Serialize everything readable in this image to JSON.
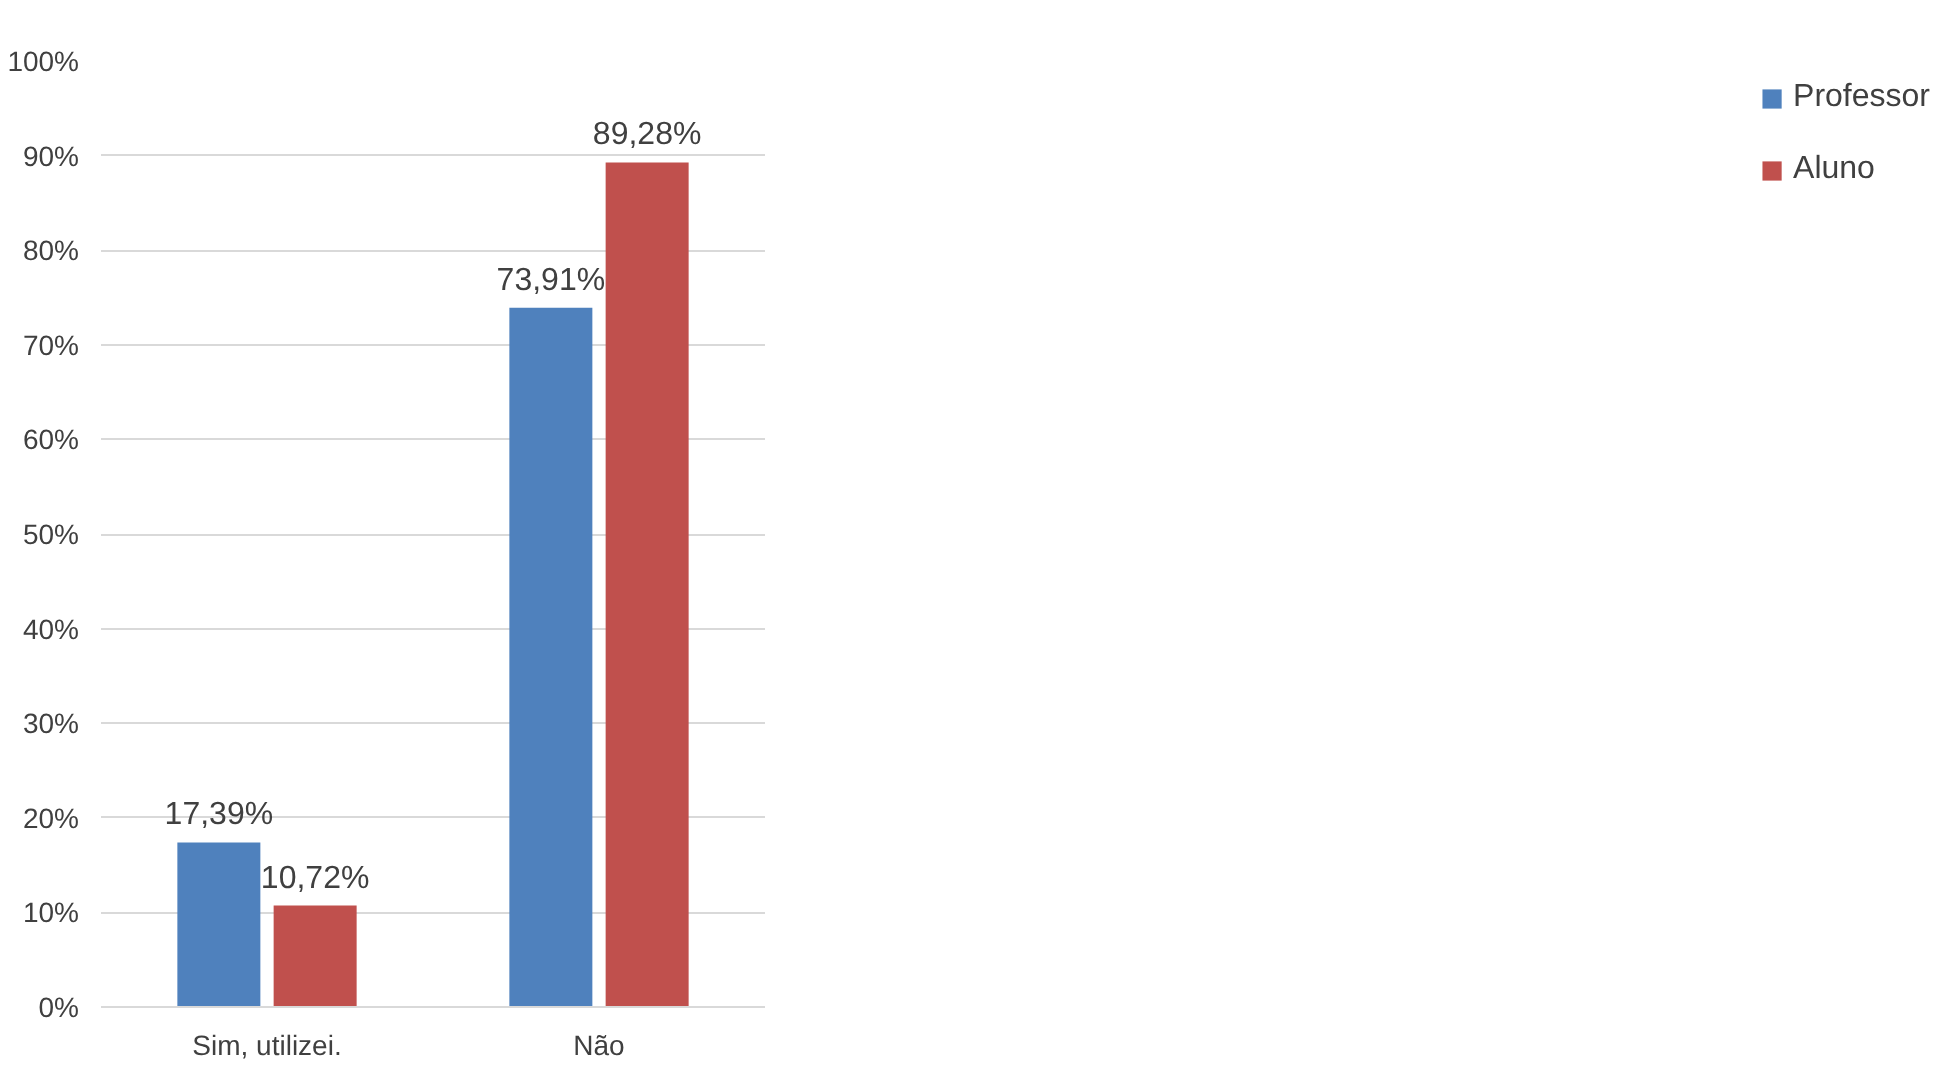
{
  "chart_data": {
    "type": "bar",
    "categories": [
      "Sim, utilizei.",
      "Não"
    ],
    "series": [
      {
        "name": "Professor",
        "color": "#4f81bd",
        "values": [
          17.39,
          73.91
        ],
        "value_labels": [
          "17,39%",
          "73,91%"
        ]
      },
      {
        "name": "Aluno",
        "color": "#c0504d",
        "values": [
          10.72,
          89.28
        ],
        "value_labels": [
          "10,72%",
          "89,28%"
        ]
      }
    ],
    "ylim": [
      0,
      100
    ],
    "yticks": [
      {
        "value": 0,
        "label": "0%"
      },
      {
        "value": 10,
        "label": "10%"
      },
      {
        "value": 20,
        "label": "20%"
      },
      {
        "value": 30,
        "label": "30%"
      },
      {
        "value": 40,
        "label": "40%"
      },
      {
        "value": 50,
        "label": "50%"
      },
      {
        "value": 60,
        "label": "60%"
      },
      {
        "value": 70,
        "label": "70%"
      },
      {
        "value": 80,
        "label": "80%"
      },
      {
        "value": 90,
        "label": "90%"
      },
      {
        "value": 100,
        "label": "100%"
      }
    ],
    "grid": "y",
    "legend": "right"
  }
}
